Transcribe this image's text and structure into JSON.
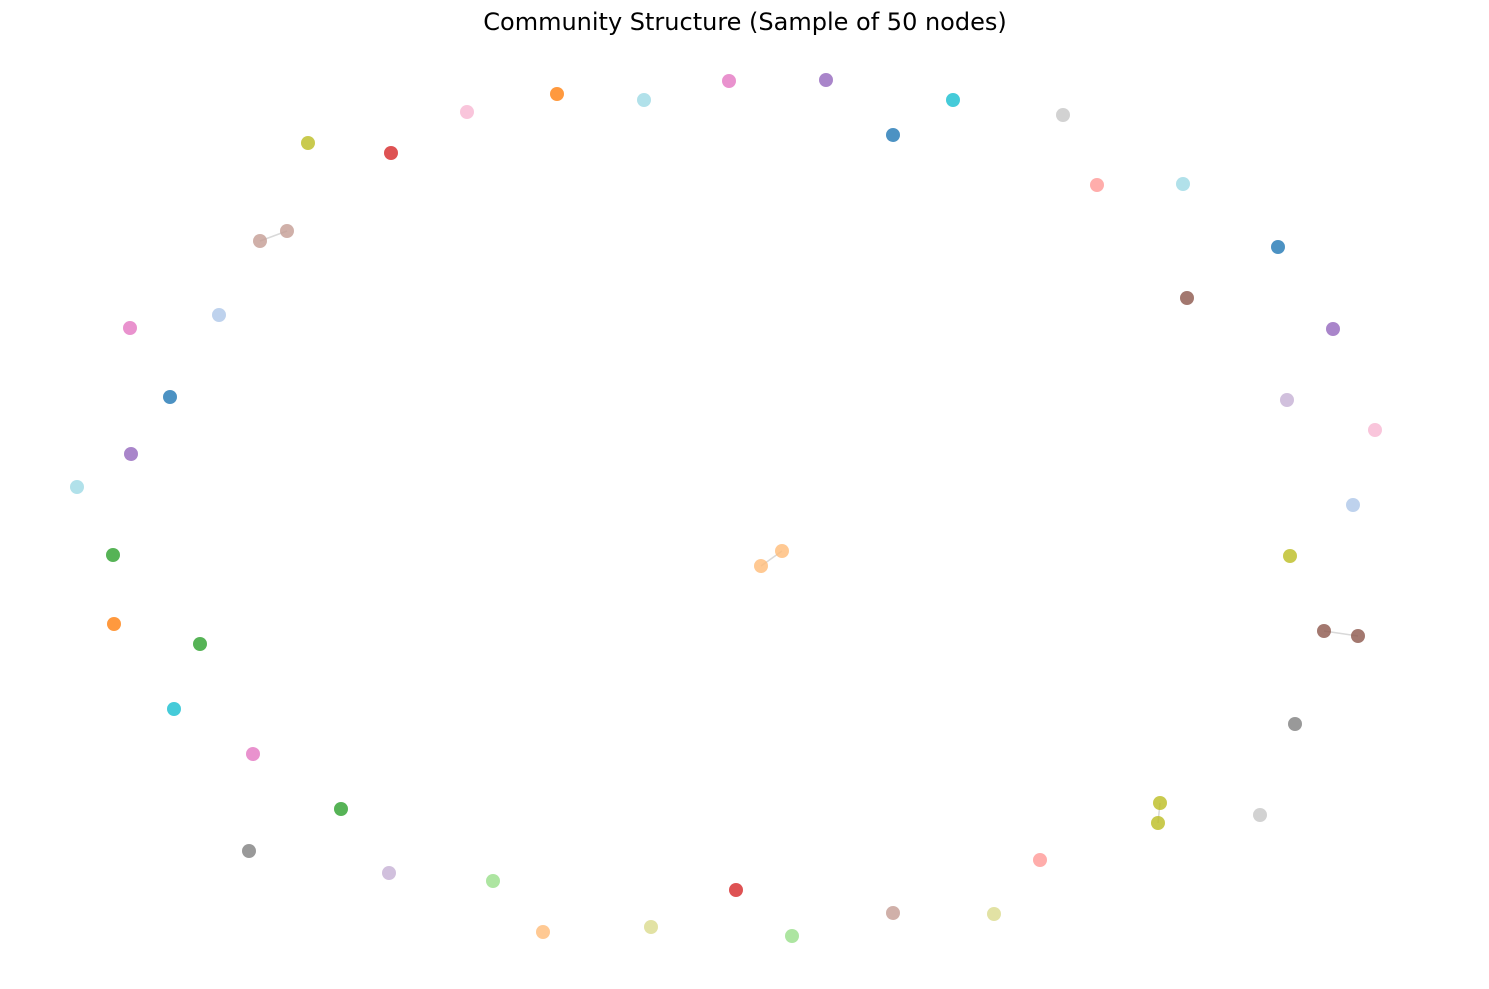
{
  "title": "Community Structure (Sample of 50 nodes)"
}
